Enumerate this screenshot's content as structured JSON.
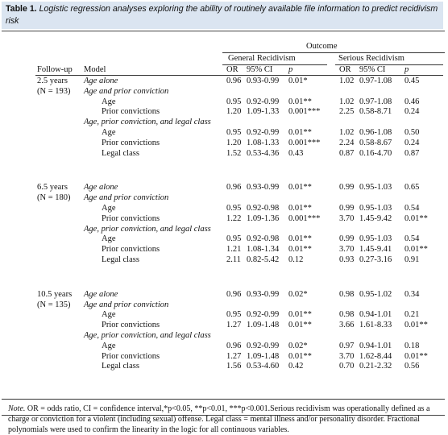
{
  "caption": {
    "label": "Table 1.",
    "text": "Logistic regression analyses exploring the ability of routinely available file information to predict recidivism risk"
  },
  "header": {
    "outcome": "Outcome",
    "general": "General Recidivism",
    "serious": "Serious Recidivism",
    "followup": "Follow-up",
    "model": "Model",
    "or": "OR",
    "ci": "95% CI",
    "p": "p"
  },
  "rows": [
    {
      "fu": "2.5 years",
      "model": "Age alone",
      "kind": "model",
      "g_or": "0.96",
      "g_ci": "0.93-0.99",
      "g_p": "0.01*",
      "s_or": "1.02",
      "s_ci": "0.97-1.08",
      "s_p": "0.45"
    },
    {
      "fu": "(N = 193)",
      "model": "Age and prior conviction",
      "kind": "model"
    },
    {
      "model": "Age",
      "kind": "var",
      "g_or": "0.95",
      "g_ci": "0.92-0.99",
      "g_p": "0.01**",
      "s_or": "1.02",
      "s_ci": "0.97-1.08",
      "s_p": "0.46"
    },
    {
      "model": "Prior convictions",
      "kind": "var",
      "g_or": "1.20",
      "g_ci": "1.09-1.33",
      "g_p": "0.001***",
      "s_or": "2.25",
      "s_ci": "0.58-8.71",
      "s_p": "0.24"
    },
    {
      "model": "Age, prior conviction, and legal class",
      "kind": "model"
    },
    {
      "model": "Age",
      "kind": "var",
      "g_or": "0.95",
      "g_ci": "0.92-0.99",
      "g_p": "0.01**",
      "s_or": "1.02",
      "s_ci": "0.96-1.08",
      "s_p": "0.50"
    },
    {
      "model": "Prior convictions",
      "kind": "var",
      "g_or": "1.20",
      "g_ci": "1.08-1.33",
      "g_p": "0.001***",
      "s_or": "2.24",
      "s_ci": "0.58-8.67",
      "s_p": "0.24"
    },
    {
      "model": "Legal class",
      "kind": "var",
      "g_or": "1.52",
      "g_ci": "0.53-4.36",
      "g_p": "0.43",
      "s_or": "0.87",
      "s_ci": "0.16-4.70",
      "s_p": "0.87"
    },
    {
      "fu": "6.5 years",
      "model": "Age alone",
      "kind": "model",
      "g_or": "0.96",
      "g_ci": "0.93-0.99",
      "g_p": "0.01**",
      "s_or": "0.99",
      "s_ci": "0.95-1.03",
      "s_p": "0.65"
    },
    {
      "fu": "(N = 180)",
      "model": "Age and prior conviction",
      "kind": "model"
    },
    {
      "model": "Age",
      "kind": "var",
      "g_or": "0.95",
      "g_ci": "0.92-0.98",
      "g_p": "0.01**",
      "s_or": "0.99",
      "s_ci": "0.95-1.03",
      "s_p": "0.54"
    },
    {
      "model": "Prior convictions",
      "kind": "var",
      "g_or": "1.22",
      "g_ci": "1.09-1.36",
      "g_p": "0.001***",
      "s_or": "3.70",
      "s_ci": "1.45-9.42",
      "s_p": "0.01**"
    },
    {
      "model": "Age, prior conviction, and legal class",
      "kind": "model"
    },
    {
      "model": "Age",
      "kind": "var",
      "g_or": "0.95",
      "g_ci": "0.92-0.98",
      "g_p": "0.01**",
      "s_or": "0.99",
      "s_ci": "0.95-1.03",
      "s_p": "0.54"
    },
    {
      "model": "Prior convictions",
      "kind": "var",
      "g_or": "1.21",
      "g_ci": "1.08-1.34",
      "g_p": "0.01**",
      "s_or": "3.70",
      "s_ci": "1.45-9.41",
      "s_p": "0.01**"
    },
    {
      "model": "Legal class",
      "kind": "var",
      "g_or": "2.11",
      "g_ci": "0.82-5.42",
      "g_p": "0.12",
      "s_or": "0.93",
      "s_ci": "0.27-3.16",
      "s_p": "0.91"
    },
    {
      "fu": "10.5 years",
      "model": "Age alone",
      "kind": "model",
      "g_or": "0.96",
      "g_ci": "0.93-0.99",
      "g_p": "0.02*",
      "s_or": "0.98",
      "s_ci": "0.95-1.02",
      "s_p": "0.34"
    },
    {
      "fu": "(N = 135)",
      "model": "Age and prior conviction",
      "kind": "model"
    },
    {
      "model": "Age",
      "kind": "var",
      "g_or": "0.95",
      "g_ci": "0.92-0.99",
      "g_p": "0.01**",
      "s_or": "0.98",
      "s_ci": "0.94-1.01",
      "s_p": "0.21"
    },
    {
      "model": "Prior convictions",
      "kind": "var",
      "g_or": "1.27",
      "g_ci": "1.09-1.48",
      "g_p": "0.01**",
      "s_or": "3.66",
      "s_ci": "1.61-8.33",
      "s_p": "0.01**"
    },
    {
      "model": "Age, prior conviction, and legal class",
      "kind": "model"
    },
    {
      "model": "Age",
      "kind": "var",
      "g_or": "0.96",
      "g_ci": "0.92-0.99",
      "g_p": "0.02*",
      "s_or": "0.97",
      "s_ci": "0.94-1.01",
      "s_p": "0.18"
    },
    {
      "model": "Prior convictions",
      "kind": "var",
      "g_or": "1.27",
      "g_ci": "1.09-1.48",
      "g_p": "0.01**",
      "s_or": "3.70",
      "s_ci": "1.62-8.44",
      "s_p": "0.01**"
    },
    {
      "model": "Legal class",
      "kind": "var",
      "g_or": "1.56",
      "g_ci": "0.53-4.60",
      "g_p": "0.42",
      "s_or": "0.70",
      "s_ci": "0.21-2.32",
      "s_p": "0.56"
    }
  ],
  "note": {
    "label": "Note.",
    "text": "OR = odds ratio, CI = confidence interval,*p<0.05, **p<0.01, ***p<0.001.Serious recidivism was operationally defined as a charge or conviction for a violent (including sexual) offense. Legal class = mental illness and/or personality disorder. Fractional polynomials were used to confirm the linearity in the logic for all continuous variables."
  }
}
